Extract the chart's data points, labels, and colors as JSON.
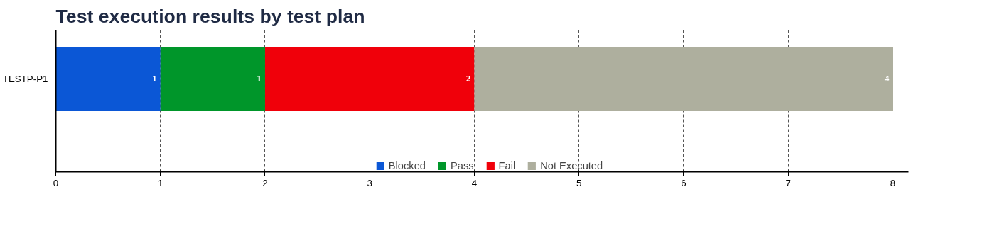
{
  "chart_data": {
    "type": "bar",
    "title": "Test execution results by test plan",
    "orientation": "horizontal",
    "stacked": true,
    "categories": [
      "TESTP-P1"
    ],
    "series": [
      {
        "name": "Blocked",
        "color": "#0b57d6",
        "values": [
          1
        ]
      },
      {
        "name": "Pass",
        "color": "#00962a",
        "values": [
          1
        ]
      },
      {
        "name": "Fail",
        "color": "#f0000a",
        "values": [
          2
        ]
      },
      {
        "name": "Not Executed",
        "color": "#aeaf9e",
        "values": [
          4
        ]
      }
    ],
    "xlim": [
      0,
      8.15
    ],
    "xticks": [
      0,
      1,
      2,
      3,
      4,
      5,
      6,
      7,
      8
    ],
    "grid": "x",
    "legend": "bottom",
    "data_labels": true
  }
}
